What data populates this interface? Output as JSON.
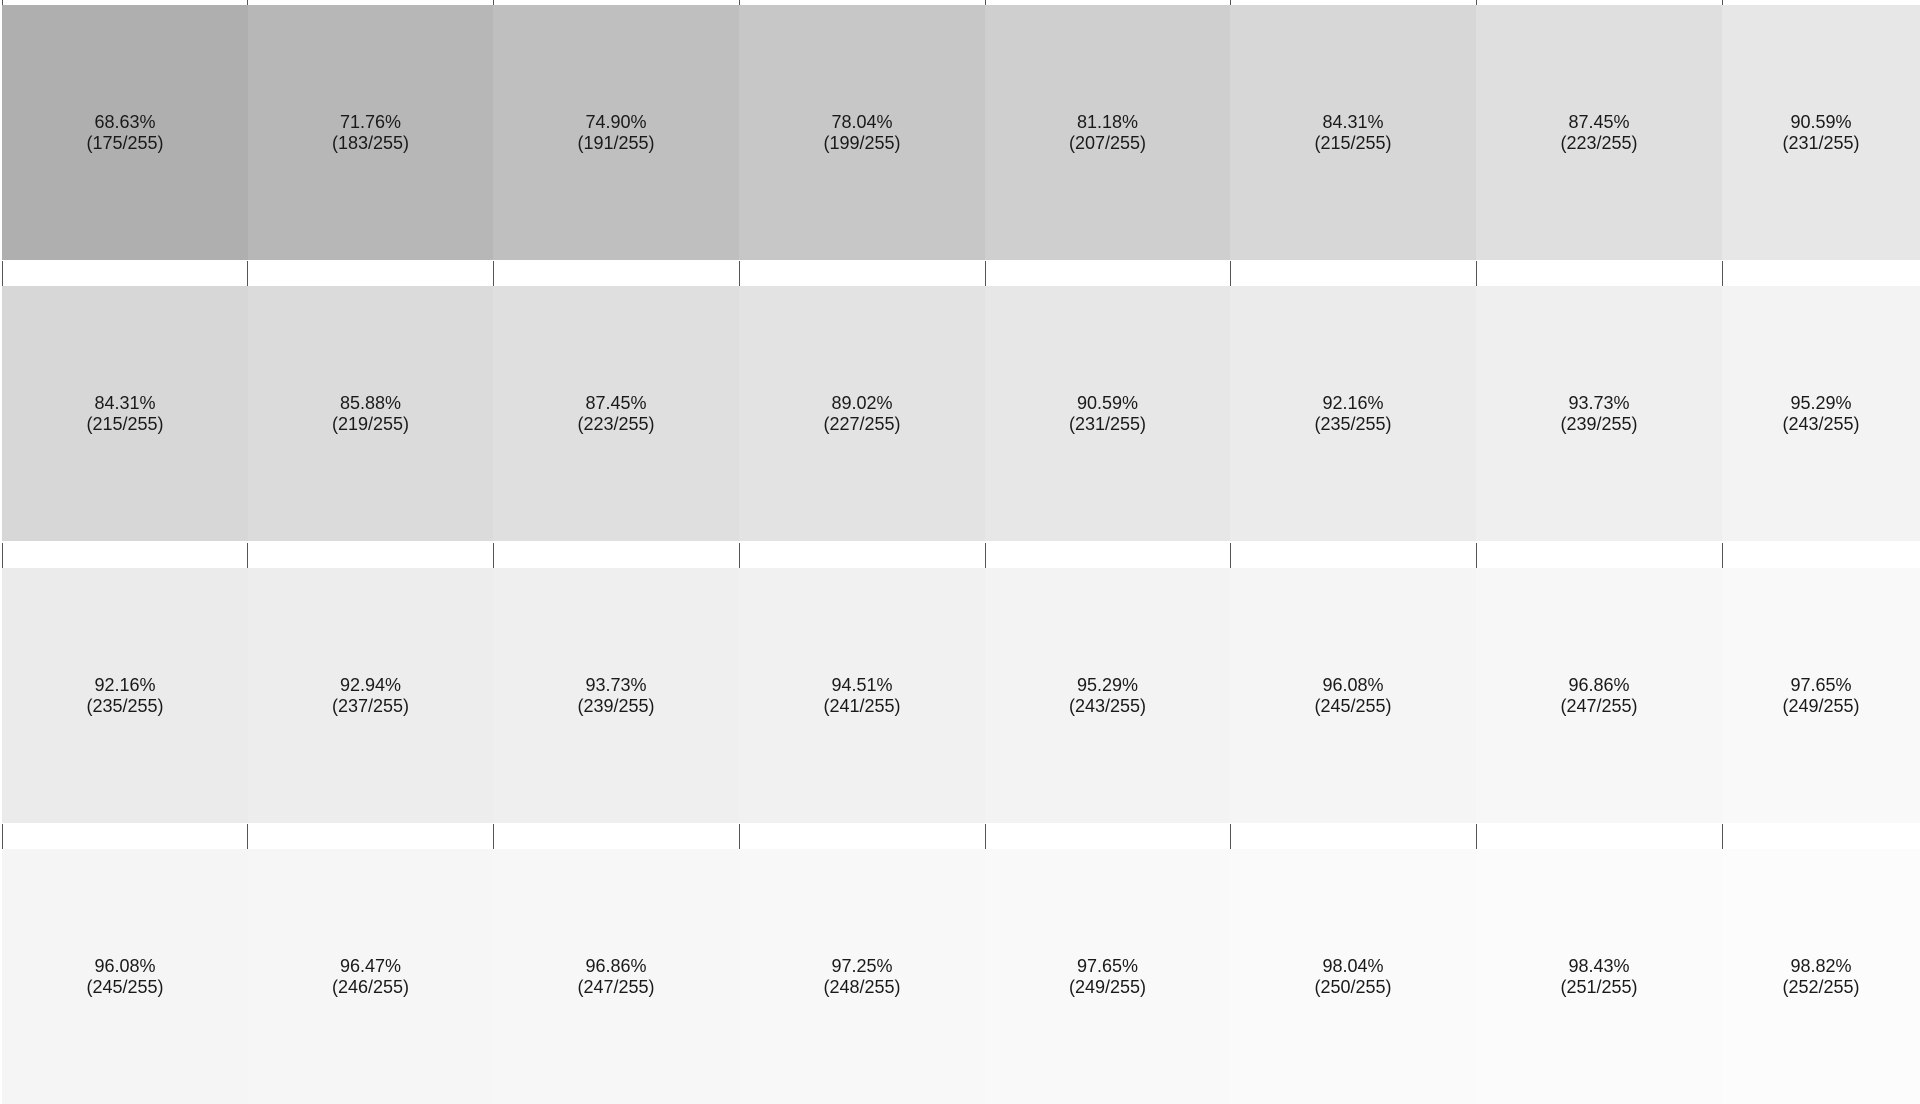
{
  "swatch_grid": {
    "rows": [
      {
        "swatches": [
          {
            "percent": "68.63%",
            "value": "(175/255)",
            "color": "#afafaf"
          },
          {
            "percent": "71.76%",
            "value": "(183/255)",
            "color": "#b7b7b7"
          },
          {
            "percent": "74.90%",
            "value": "(191/255)",
            "color": "#bfbfbf"
          },
          {
            "percent": "78.04%",
            "value": "(199/255)",
            "color": "#c7c7c7"
          },
          {
            "percent": "81.18%",
            "value": "(207/255)",
            "color": "#cfcfcf"
          },
          {
            "percent": "84.31%",
            "value": "(215/255)",
            "color": "#d7d7d7"
          },
          {
            "percent": "87.45%",
            "value": "(223/255)",
            "color": "#dfdfdf"
          },
          {
            "percent": "90.59%",
            "value": "(231/255)",
            "color": "#e7e7e7"
          }
        ]
      },
      {
        "swatches": [
          {
            "percent": "84.31%",
            "value": "(215/255)",
            "color": "#d7d7d7"
          },
          {
            "percent": "85.88%",
            "value": "(219/255)",
            "color": "#dbdbdb"
          },
          {
            "percent": "87.45%",
            "value": "(223/255)",
            "color": "#dfdfdf"
          },
          {
            "percent": "89.02%",
            "value": "(227/255)",
            "color": "#e3e3e3"
          },
          {
            "percent": "90.59%",
            "value": "(231/255)",
            "color": "#e7e7e7"
          },
          {
            "percent": "92.16%",
            "value": "(235/255)",
            "color": "#ebebeb"
          },
          {
            "percent": "93.73%",
            "value": "(239/255)",
            "color": "#efefef"
          },
          {
            "percent": "95.29%",
            "value": "(243/255)",
            "color": "#f3f3f3"
          }
        ]
      },
      {
        "swatches": [
          {
            "percent": "92.16%",
            "value": "(235/255)",
            "color": "#ebebeb"
          },
          {
            "percent": "92.94%",
            "value": "(237/255)",
            "color": "#ededed"
          },
          {
            "percent": "93.73%",
            "value": "(239/255)",
            "color": "#efefef"
          },
          {
            "percent": "94.51%",
            "value": "(241/255)",
            "color": "#f1f1f1"
          },
          {
            "percent": "95.29%",
            "value": "(243/255)",
            "color": "#f3f3f3"
          },
          {
            "percent": "96.08%",
            "value": "(245/255)",
            "color": "#f5f5f5"
          },
          {
            "percent": "96.86%",
            "value": "(247/255)",
            "color": "#f7f7f7"
          },
          {
            "percent": "97.65%",
            "value": "(249/255)",
            "color": "#f9f9f9"
          }
        ]
      },
      {
        "swatches": [
          {
            "percent": "96.08%",
            "value": "(245/255)",
            "color": "#f5f5f5"
          },
          {
            "percent": "96.47%",
            "value": "(246/255)",
            "color": "#f6f6f6"
          },
          {
            "percent": "96.86%",
            "value": "(247/255)",
            "color": "#f7f7f7"
          },
          {
            "percent": "97.25%",
            "value": "(248/255)",
            "color": "#f8f8f8"
          },
          {
            "percent": "97.65%",
            "value": "(249/255)",
            "color": "#f9f9f9"
          },
          {
            "percent": "98.04%",
            "value": "(250/255)",
            "color": "#fafafa"
          },
          {
            "percent": "98.43%",
            "value": "(251/255)",
            "color": "#fbfbfb"
          },
          {
            "percent": "98.82%",
            "value": "(252/255)",
            "color": "#fcfcfc"
          }
        ]
      }
    ]
  }
}
